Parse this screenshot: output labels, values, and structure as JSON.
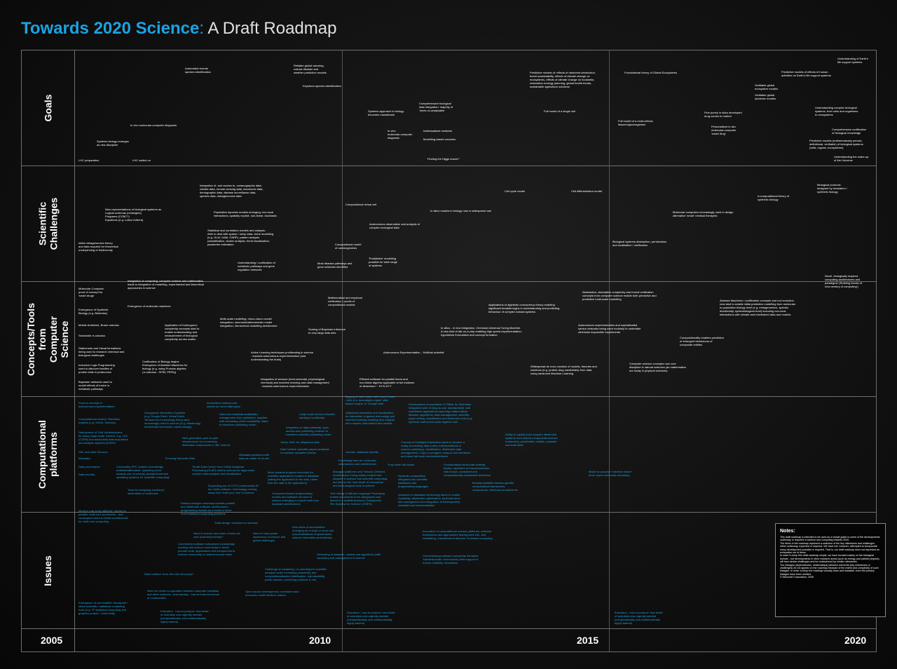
{
  "title": {
    "main": "Towards 2020 Science",
    "separator": ":",
    "subtitle": " A Draft Roadmap"
  },
  "rows": {
    "goals": "Goals",
    "challenges": "Scientific\nChallenges",
    "concepts": "Concepts/Tools from\nComputer Science",
    "platforms": "Computational\nplatforms",
    "issues": "Issues"
  },
  "years": {
    "y2005": "2005",
    "y2010": "2010",
    "y2015": "2015",
    "y2020": "2020"
  },
  "notes": {
    "title": "Notes:",
    "body": "This draft roadmap is intended to be used as a simple guide to some of the developments underway or required in science and computing towards 2020.\nThe items in the roadmap represent a selection of the key milestones and challenges either underway, expected or required. We have not, however, attempted to incorporate every development possible or required. That is, our draft roadmap does not represent an exhaustive set of items.\nIn order to keep this draft roadmap simple, we have focused mainly on the biological domain - but developments in other research areas (such as energy and particle physics) will face similar challenges and be underpinned by similar milestones.\nThe linkages (dependencies, relationships) between elements (key milestones or challenges) do not appear on the roadmap because of the extent and complexity of such linkages. In order to keep the roadmap visually clean and readable, even the primary linkages have been omitted.\n© Microsoft Corporation, 2006"
  },
  "goals": [
    "Automated remote\nspecies identification",
    "Reliable global warming,\nnatural disaster and\nweather prediction models",
    "Keystone-species identification",
    "In vivo molecular-computer diagnosis",
    "Systems biology emerges\nas new discipline",
    "LHC preparation",
    "LHC switch-on",
    "Comprehensive biological\ndata integration: majority of\n'omes co-analysable",
    "Systems approach to biology\nbecomes mainstream",
    "In vivo\nmolecular-computer\ndiagnosis",
    "Individualised medicine",
    "Modelling-based vaccines",
    "Finding the Higgs boson?",
    "Predictive models of: effects of rainforest destruction,\nforest sustainability, effects of climate change on\necosystems, effects of climate change on foodwebs,\nrestoration ecology planning, global health trends,\nsustainable agriculture solutions",
    "Full model of a single cell",
    "Foundational theory of Global Ecosystems",
    "Full model of a multi-cellular\ntissue/organ/organism",
    "First purely in silico developed\ndrug comes to market",
    "Personalised in situ\nmolecular-computer\n'smart drug'",
    "Understanding of Earth's\nlife support systems",
    "Predictive models of effects of human\nactivities on Earth's life support systems",
    "Verifiable global\necosystem models",
    "Verifiable global\nepidemic models",
    "Understanding complex biological\nsystems, from cells and organisms\nto ecosystems",
    "Comprehensive codification\nof biological knowledge",
    "Predictive models (mathematically precise,\ndefinitional, verifiable) of biological systems\n(cells, organs, ecosystems)",
    "Understanding the make-up\nof the Universe"
  ],
  "challenges": [
    "Integration of, and access to, oceanographic data,\nclimate data, remote sensing data, taxonomic data,\ndemographic data, disease surveillance data,\nspecies data, metagenomics data",
    "New representations of biological systems as\nLogical schemas (ontologies)\nPrograms (CCBC?)\nEquations (e.g. Lotka-Volterra)",
    "Population dynamic models emerging; non-local\ninteractions, spatially explicit, non-linear, stochastic",
    "Initial metagenomics theory\nand data required for theoretical\nunderpinning of biodiversity",
    "Statistical and correlation models and analysis.\nAble to deal with sparse / noisy data, niche modelling\n(e.g. GLM, GAM, GARP), pattern analysis\n(classification, cluster analysis, trend visualisation,\nparameter estimation",
    "Understanding / codification of\nmetabolic pathways and gene\nregulation networks",
    "Compositional virtual cell",
    "Autonomous observation and analysis of\ncomplex ecological data",
    "Compositional model\nof carcinogenesis",
    "Most disease pathways and\ngene networks identified",
    "'Postdictive' modelling\npossible for wide range\nof systems",
    "Cell cycle model",
    "Cell differentiation model",
    "In silico models in biology now in widespread use",
    "A computational theory of\nsynthetic biology",
    "Biological products\ndesigned by simulation /\nsynthetic biology",
    "Molecular computers increasingly used to design\nalternative 'smart' medical therapies",
    "Biological systems abstraction, perturbation\nand localisation / verification"
  ],
  "concepts": [
    "Molecular Computer\nproof of concept for\n'smart drugs'",
    "Integration of computing, computer science and mathematics\nleads to integration of modelling, experimental and theoretical\napproaches in science",
    "Emergence of molecular machines",
    "Emergence of Synthetic\nBiology (e.g. Biobricks)",
    "Mobile Ambients, Brane calculus",
    "Stochastic π-calculus",
    "Multi-scale modelling: micro-macro model\nintegration, stochastic/deterministic model\nintegration, hierarchical modelling architecture",
    "Application of Kolmogorov\ncomplexity concepts start to\nenable understanding and\nmeasurement of biological\ncomplexity across scales",
    "Mathematical and empirical\nverification / proofs of\ncompositional models",
    "Scaling of Bayesian Inference\nto very large data sets",
    "Statecharts and Visual formalisms\nbeing used to research chemical and\nbiological challenges",
    "Inductive Logic Programming\nused to discover families of\nprotein folds in proteomics",
    "Bayesian networks used to\nmodel effects of toxins in\nmetabolic pathways",
    "Codification of Biology begins\nEmergence of Abstract Machines for\nbiology (e.g. using Process algebra\n(π-calculus - SPiM, PEPA))",
    "Active Learning techniques proliferating in science\n- towards autonomous experimentation (and\nunderstanding the brain)",
    "Autonomous Experimentation - 'Artificial scientist'",
    "Integration of sensors (environmental, physiological,\nchemical) and machine learning and data management\n- towards autonomous experimentation",
    "Efficient software for parallel linear and\nnon-linear algebra applicable to full matrices\nof dimension ~ 10^5-10^7",
    "Applications of algebraic concurrency theory enabling\nsignificant breakthroughs in understanding and predicting\nbehaviour of complex natural systems",
    "In silico - in vivo integration. Chemical Universal Turing Machine.\nA new kind of lab-on-a-chip enabling high speed experimentation,\nhypothesis formulation and concept formation",
    "Abstraction, descriptive complexity and formal verification\nconcepts from computer science enable both predictive and\npredictive multi-scale modelling",
    "Autonomous experimentation and sophisticated\nsensor networks being used routinely to undertake\notherwise impossible experiments",
    "Widespread de novo creation of models, theories and\nsolutions (e.g. protein-drug candidates) from data\nusing advanced Machine Learning",
    "Compositionality enables prediction\nof emergent behaviours of\ncomposite entities",
    "Computer science concepts now core\ndiscipline in natural sciences (as mathematics\nare today in physical sciences)",
    "Abstract Machines / codification concepts and tool evolution\nnow start to enable initial predictive modelling from molecular\nto population biology level (e.g. metagenomics, species\nbiodiversity, epidemiological level) including non-local\ninteractions with climate and intertwined data and models",
    "Novel, biologically inspired,\ncomputing architectures and\nparadigms ('Building blocks of\nnew century of computing')"
  ],
  "platforms": [
    "Proof of concept of\nautonomous experimentation",
    "Information retrieval and\nsearch for novel data types",
    "Computational science 'Workflow'\nengines (e.g. SciLib, Taverna)",
    "Geographic Information Systems\n(e.g. Google Earth, Virtual Earth,\nTerraserver) increasingly being used\nincreasingly used in science (e.g. climatology,\nbiodiversity informatics, epidemiology)",
    "Data and metadata availability /\nmanagement from publishers, together\nwith increasing online availability, starts\nto transform publishing model",
    "Large-scale sensor networks\nstarting to proliferate",
    "Deployment of 'Grid' infrastructures\nfor doing 'large-scale' science, e.g. LHC\n(CERN) and associated data acquisition\nand analysis systems (EGEE)",
    "Integration of data,metadata, open\naccess and publishing continue to\ntransform scientific publishing model",
    "Next-generation peer-to-peer\ninfrastructure for connecting\ndistributed components in 'Bio' science",
    "'Active XML' for ubiquitous data",
    "XML and Web Services",
    "Metadata",
    "Evolving Semantic Web",
    "Data 'behind' scientific papers available\nin machine-readable formats",
    "Metadata published with\ndata as matter of course",
    "Data provenance",
    "Commodity HPC clusters increasingly\navailable/affordable, spawning move\ntowards use of industry standard/common\noperating systems for 'scientific computing'",
    "'Smart Data Cubes' from Online Analytical\nProcessing (OLAP) used in science for large-scale\ncomplex data analysis and visualisation",
    "Data security",
    "Tools for designing functional\nassemblies of molecules",
    "Expanding use of COTS (commercial off\nthe shelf) software / technology moving\naway from 'build your own' in science",
    "Radical changes underway towards parallel\nand distributed software architectures /\nprogramming models as a result of move\nfrom traditional computing platforms",
    "Move towards program execution for\nscientific applications located in database\n(taking the application to the data, rather\nthan the data to the application)",
    "Component-based programming\nmodels and software services in\nscience emerging to exploit multi-core\nhardware architectures",
    "Tagging of each datum with context data\n- birth of a 'serendipity engine' after\n'search engine' or 'Google date'",
    "Ubiquitous simulation and visualisation\nfor interaction of games technology and\nmachine learning enabling new insights\ninto complex phenomena and models",
    "Development of equivalent of 'Office' for Scientists -\nIntegrated suite of easy-to-use, standardised, well\nmaintained applications spanning mathematical\nlibraries, algorithms, data management, scientific\npaper writing, visualisation and electronic tools (e.g.\nsymbolic maths) that work together well",
    "Journal / database hybrids",
    "Knowledge bars for 'molecular'\nmechanisms and architectures",
    "Managed platforms and 'Service-Oriented\nArchitectures' being widely created and\nadopted in science and scientific computing,\nbut also for the 'new kinds' of conceptual\nand technological tools in science",
    "Truly smart lab-books",
    "Concept of intelligent interaction starts to become a\nreality (combining data cubes, transformations in\nscience publishing, visualisation, distributed data\nmanagement). Copy on program, easy-to-use interfaces\nand smart lab-book devices/interfaces",
    "Functionalised molecular building\nblocks, repertoire of macromolecules\nwith known, consistent and\ncompositionally explainable behaviour",
    "Symbolic computation\nintegrated into scientific\ndatabases and\nprogramming languages",
    "Text mining & Natural Language Processing\nenable documents to be categorised and\nstored in a multidimensional 'Ontospheric'\nFile Systems for Science' (OSFS)",
    "Advances in database technology starts to enable:\nScalability, distributed optimisation, fault-tolerance,\nself-management and integration of heterogeneity,\nmetadata and schematisation",
    "Broadly available domain-specific\ncompositional frameworks,\ncomponents, reference architectures",
    "Ability to rapidly build complex distributed\nsystems from shared components that are\ntrustworthy, predictable, reliable, scalable\nand extensible",
    "Made for purpose 'Interface maker'\n(from supra-molecular chemistry)"
  ],
  "issues": [
    "Moore's Law to be adhered, moving to\nparallel, multi-core processors - and\nconsequent need to define architectures\nfor multi-core computing",
    "'Data deluge' continues to increase",
    "Need to ensure new kinds of tools are\nuser (scientist) friendly?",
    "Need to raise public\nawareness of science and\nglobal challenges",
    "New kinds of communities\nemerging as a result of novel and\n(re)combinations of governance,\nscience informatics and industry",
    "Innovation in computational science platforms, software\nframeworks and approaches flowing back into, and\nrevitalising, mainstream enterprise / business computing",
    "Commercial software enterprises increasingly\nworking with science community to freely\nprovide code, applications and components to\nscience community on shared-source basis",
    "Versioning of datasets, models and algorithms (with\nrepository and management in science",
    "Overwhelming software complexity demands\n'industrial-scale' and industry-wide support to\nensure reliability, robustness",
    "Data curation: how, who and who pays?",
    "Challenge of sustaining / re-orienting the scientific\nprinciple under increasing complexity and\ncompositionalisation (falsification, reproducibility,\npublic domain, combining methods & etc)",
    "Need for closer co-operation between computer scientists\nand other sciences - and industry - how to build new kinds\nof communities",
    "Open-source development, investment and\neconomic model starts to mature",
    "Emergence of commodities discrepant /\nshare scientific / statistical computing\ntools (e.g. 'R' statistical computing and\ngraphics project / community)",
    "Education - how to produce 'new kinds'\nof scientists now urgently needed\n(computationally and mathematically\nhighly trained)",
    "Education - how to produce 'new kinds'\nof scientists now urgently needed\n(computationally and mathematically\nhighly trained)",
    "Education - how to produce 'new kinds'\nof scientists now urgently needed\n(computationally and mathematically\nhighly trained)"
  ]
}
